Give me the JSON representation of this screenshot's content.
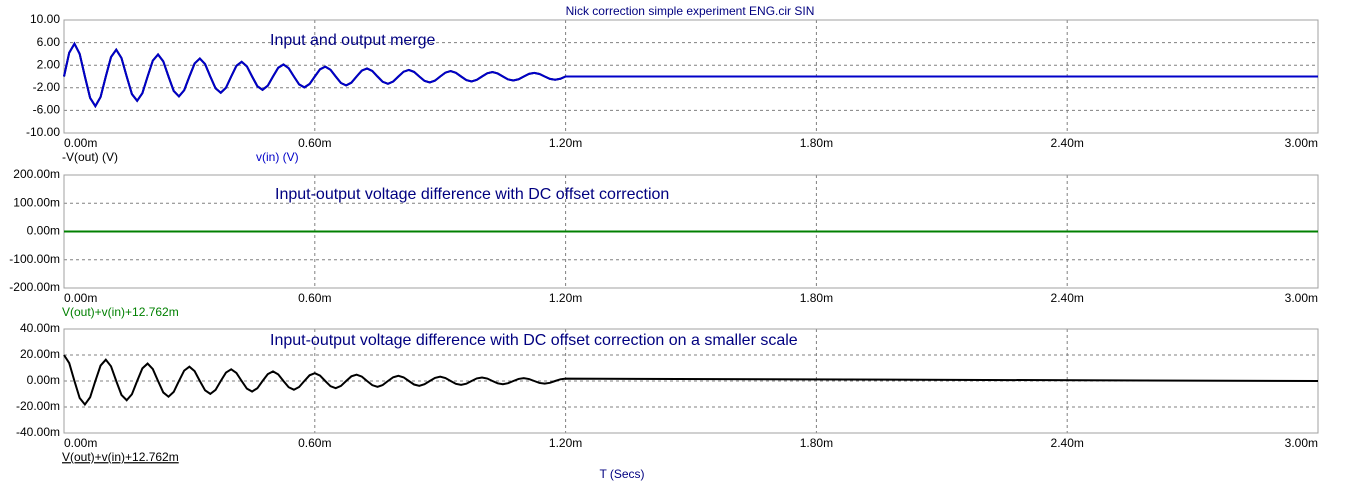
{
  "title": "Nick correction simple experiment ENG.cir SIN",
  "x_label": "T (Secs)",
  "chart_data": [
    {
      "type": "line",
      "annotation": "Input and output merge",
      "grid": true,
      "xlim": [
        0,
        0.003
      ],
      "xticks": [
        {
          "value": 0,
          "label": "0.00m"
        },
        {
          "value": 0.0006,
          "label": "0.60m"
        },
        {
          "value": 0.0012,
          "label": "1.20m"
        },
        {
          "value": 0.0018,
          "label": "1.80m"
        },
        {
          "value": 0.0024,
          "label": "2.40m"
        },
        {
          "value": 0.003,
          "label": "3.00m"
        }
      ],
      "ylim": [
        -10,
        10
      ],
      "yticks": [
        {
          "value": 10,
          "label": "10.00"
        },
        {
          "value": 6,
          "label": "6.00"
        },
        {
          "value": 2,
          "label": "2.00"
        },
        {
          "value": -2,
          "label": "-2.00"
        },
        {
          "value": -6,
          "label": "-6.00"
        },
        {
          "value": -10,
          "label": "-10.00"
        }
      ],
      "x": [
        0,
        1.25e-05,
        2.5e-05,
        3.75e-05,
        5e-05,
        6.25e-05,
        7.5e-05,
        8.75e-05,
        0.0001,
        0.0001125,
        0.000125,
        0.0001375,
        0.00015,
        0.0001625,
        0.000175,
        0.0001875,
        0.0002,
        0.0002125,
        0.000225,
        0.0002375,
        0.00025,
        0.0002625,
        0.000275,
        0.0002875,
        0.0003,
        0.0003125,
        0.000325,
        0.0003375,
        0.00035,
        0.0003625,
        0.000375,
        0.0003875,
        0.0004,
        0.0004125,
        0.000425,
        0.0004375,
        0.00045,
        0.0004625,
        0.000475,
        0.0004875,
        0.0005,
        0.0005125,
        0.000525,
        0.0005375,
        0.00055,
        0.0005625,
        0.000575,
        0.0005875,
        0.0006,
        0.0006125,
        0.000625,
        0.0006375,
        0.00065,
        0.0006625,
        0.000675,
        0.0006875,
        0.0007,
        0.0007125,
        0.000725,
        0.0007375,
        0.00075,
        0.0007625,
        0.000775,
        0.0007875,
        0.0008,
        0.0008125,
        0.000825,
        0.0008375,
        0.00085,
        0.0008625,
        0.000875,
        0.0008875,
        0.0009,
        0.0009125,
        0.000925,
        0.0009375,
        0.00095,
        0.0009625,
        0.000975,
        0.0009875,
        0.001,
        0.0010125,
        0.001025,
        0.0010375,
        0.00105,
        0.0010625,
        0.001075,
        0.0010875,
        0.0011,
        0.0011125,
        0.001125,
        0.0011375,
        0.00115,
        0.0011625,
        0.001175,
        0.0011875,
        0.0012,
        0.003
      ],
      "series": [
        {
          "name": "-V(out) (V)",
          "color": "#000000",
          "values": [
            0,
            4.21,
            5.8,
            4.0,
            0,
            -3.8,
            -5.25,
            -3.62,
            0,
            3.44,
            4.75,
            3.27,
            0,
            -3.12,
            -4.3,
            -2.96,
            0,
            2.82,
            3.89,
            2.68,
            0,
            -2.55,
            -3.52,
            -2.43,
            0,
            2.31,
            3.18,
            2.2,
            0,
            -2.09,
            -2.88,
            -1.99,
            0,
            1.89,
            2.61,
            1.8,
            0,
            -1.71,
            -2.36,
            -1.63,
            0,
            1.55,
            2.13,
            1.47,
            0,
            -1.4,
            -1.93,
            -1.33,
            0,
            1.27,
            1.75,
            1.2,
            0,
            -1.15,
            -1.58,
            -1.09,
            0,
            1.04,
            1.43,
            0.99,
            0,
            -0.94,
            -1.29,
            -0.89,
            0,
            0.85,
            1.17,
            0.81,
            0,
            -0.77,
            -1.06,
            -0.73,
            0,
            0.69,
            0.96,
            0.66,
            0,
            -0.63,
            -0.87,
            -0.6,
            0,
            0.57,
            0.79,
            0.54,
            0,
            -0.52,
            -0.71,
            -0.49,
            0,
            0.47,
            0.64,
            0.45,
            0,
            -0.42,
            -0.58,
            -0.4,
            0,
            0
          ]
        },
        {
          "name": "v(in) (V)",
          "color": "#0000c8",
          "values": [
            0,
            4.21,
            5.8,
            4.0,
            0,
            -3.8,
            -5.25,
            -3.62,
            0,
            3.44,
            4.75,
            3.27,
            0,
            -3.12,
            -4.3,
            -2.96,
            0,
            2.82,
            3.89,
            2.68,
            0,
            -2.55,
            -3.52,
            -2.43,
            0,
            2.31,
            3.18,
            2.2,
            0,
            -2.09,
            -2.88,
            -1.99,
            0,
            1.89,
            2.61,
            1.8,
            0,
            -1.71,
            -2.36,
            -1.63,
            0,
            1.55,
            2.13,
            1.47,
            0,
            -1.4,
            -1.93,
            -1.33,
            0,
            1.27,
            1.75,
            1.2,
            0,
            -1.15,
            -1.58,
            -1.09,
            0,
            1.04,
            1.43,
            0.99,
            0,
            -0.94,
            -1.29,
            -0.89,
            0,
            0.85,
            1.17,
            0.81,
            0,
            -0.77,
            -1.06,
            -0.73,
            0,
            0.69,
            0.96,
            0.66,
            0,
            -0.63,
            -0.87,
            -0.6,
            0,
            0.57,
            0.79,
            0.54,
            0,
            -0.52,
            -0.71,
            -0.49,
            0,
            0.47,
            0.64,
            0.45,
            0,
            -0.42,
            -0.58,
            -0.4,
            0,
            0
          ]
        }
      ]
    },
    {
      "type": "line",
      "annotation": "Input-output voltage difference with DC offset correction",
      "grid": true,
      "xlim": [
        0,
        0.003
      ],
      "xticks": [
        {
          "value": 0,
          "label": "0.00m"
        },
        {
          "value": 0.0006,
          "label": "0.60m"
        },
        {
          "value": 0.0012,
          "label": "1.20m"
        },
        {
          "value": 0.0018,
          "label": "1.80m"
        },
        {
          "value": 0.0024,
          "label": "2.40m"
        },
        {
          "value": 0.003,
          "label": "3.00m"
        }
      ],
      "ylim": [
        -0.2,
        0.2
      ],
      "yticks": [
        {
          "value": 0.2,
          "label": "200.00m"
        },
        {
          "value": 0.1,
          "label": "100.00m"
        },
        {
          "value": 0,
          "label": "0.00m"
        },
        {
          "value": -0.1,
          "label": "-100.00m"
        },
        {
          "value": -0.2,
          "label": "-200.00m"
        }
      ],
      "x": [
        0,
        0.003
      ],
      "series": [
        {
          "name": "V(out)+v(in)+12.762m",
          "color": "#008000",
          "values": [
            0,
            0
          ]
        }
      ]
    },
    {
      "type": "line",
      "annotation": "Input-output voltage difference with DC offset correction on a smaller scale",
      "grid": true,
      "xlim": [
        0,
        0.003
      ],
      "xticks": [
        {
          "value": 0,
          "label": "0.00m"
        },
        {
          "value": 0.0006,
          "label": "0.60m"
        },
        {
          "value": 0.0012,
          "label": "1.20m"
        },
        {
          "value": 0.0018,
          "label": "1.80m"
        },
        {
          "value": 0.0024,
          "label": "2.40m"
        },
        {
          "value": 0.003,
          "label": "3.00m"
        }
      ],
      "ylim": [
        -0.04,
        0.04
      ],
      "yticks": [
        {
          "value": 0.04,
          "label": "40.00m"
        },
        {
          "value": 0.02,
          "label": "20.00m"
        },
        {
          "value": 0,
          "label": "0.00m"
        },
        {
          "value": -0.02,
          "label": "-20.00m"
        },
        {
          "value": -0.04,
          "label": "-40.00m"
        }
      ],
      "x": [
        0,
        1.25e-05,
        2.5e-05,
        3.75e-05,
        5e-05,
        6.25e-05,
        7.5e-05,
        8.75e-05,
        0.0001,
        0.0001125,
        0.000125,
        0.0001375,
        0.00015,
        0.0001625,
        0.000175,
        0.0001875,
        0.0002,
        0.0002125,
        0.000225,
        0.0002375,
        0.00025,
        0.0002625,
        0.000275,
        0.0002875,
        0.0003,
        0.0003125,
        0.000325,
        0.0003375,
        0.00035,
        0.0003625,
        0.000375,
        0.0003875,
        0.0004,
        0.0004125,
        0.000425,
        0.0004375,
        0.00045,
        0.0004625,
        0.000475,
        0.0004875,
        0.0005,
        0.0005125,
        0.000525,
        0.0005375,
        0.00055,
        0.0005625,
        0.000575,
        0.0005875,
        0.0006,
        0.0006125,
        0.000625,
        0.0006375,
        0.00065,
        0.0006625,
        0.000675,
        0.0006875,
        0.0007,
        0.0007125,
        0.000725,
        0.0007375,
        0.00075,
        0.0007625,
        0.000775,
        0.0007875,
        0.0008,
        0.0008125,
        0.000825,
        0.0008375,
        0.00085,
        0.0008625,
        0.000875,
        0.0008875,
        0.0009,
        0.0009125,
        0.000925,
        0.0009375,
        0.00095,
        0.0009625,
        0.000975,
        0.0009875,
        0.001,
        0.0010125,
        0.001025,
        0.0010375,
        0.00105,
        0.0010625,
        0.001075,
        0.0010875,
        0.0011,
        0.0011125,
        0.001125,
        0.0011375,
        0.00115,
        0.0011625,
        0.001175,
        0.0011875,
        0.0012,
        0.003
      ],
      "series": [
        {
          "name": "V(out)+v(in)+12.762m",
          "color": "#000000",
          "values": [
            0.02,
            0.0138,
            0,
            -0.0131,
            -0.0181,
            -0.0125,
            0,
            0.0119,
            0.0164,
            0.0113,
            0,
            -0.0107,
            -0.0148,
            -0.0102,
            0,
            0.0097,
            0.0134,
            0.0092,
            0,
            -0.0088,
            -0.0121,
            -0.0084,
            0,
            0.008,
            0.011,
            0.0076,
            0,
            -0.0072,
            -0.0099,
            -0.0069,
            0,
            0.0065,
            0.009,
            0.0062,
            0,
            -0.0059,
            -0.0081,
            -0.0056,
            0,
            0.0053,
            0.0074,
            0.0051,
            0,
            -0.0048,
            -0.0067,
            -0.0046,
            0,
            0.0044,
            0.006,
            0.0042,
            0,
            -0.004,
            -0.0055,
            -0.0038,
            0,
            0.0036,
            0.0049,
            0.0034,
            0,
            -0.0032,
            -0.0045,
            -0.0031,
            0,
            0.0029,
            0.004,
            0.0028,
            0,
            -0.0027,
            -0.0037,
            -0.0025,
            0,
            0.0024,
            0.0033,
            0.0023,
            0,
            -0.0022,
            -0.003,
            -0.0021,
            0,
            0.002,
            0.0027,
            0.0019,
            0,
            -0.0018,
            -0.0025,
            -0.0017,
            0,
            0.0016,
            0.0022,
            0.0015,
            0,
            -0.0015,
            -0.002,
            -0.0014,
            0,
            0.0013,
            0.0018,
            0
          ]
        }
      ]
    }
  ]
}
